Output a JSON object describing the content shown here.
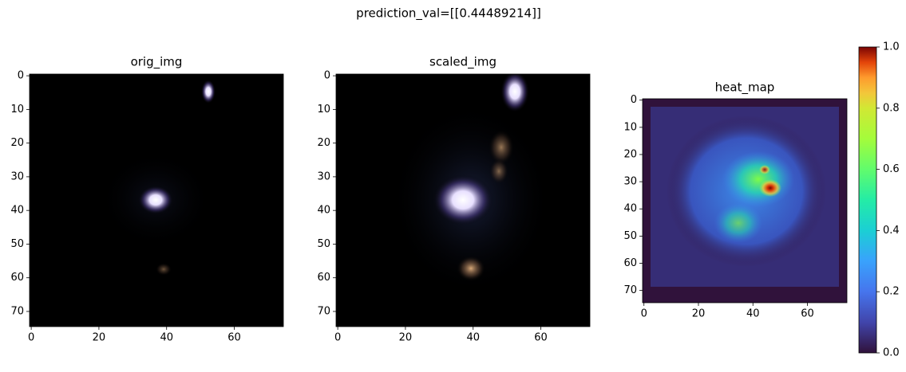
{
  "title": "prediction_val=[[0.44489214]]",
  "chart_data": [
    {
      "type": "image",
      "title": "orig_img",
      "xlim": [
        -0.5,
        74.5
      ],
      "ylim": [
        74.5,
        -0.5
      ],
      "xticks": [
        0,
        20,
        40,
        60
      ],
      "yticks": [
        0,
        10,
        20,
        30,
        40,
        50,
        60,
        70
      ]
    },
    {
      "type": "image",
      "title": "scaled_img",
      "xlim": [
        -0.5,
        74.5
      ],
      "ylim": [
        74.5,
        -0.5
      ],
      "xticks": [
        0,
        20,
        40,
        60
      ],
      "yticks": [
        0,
        10,
        20,
        30,
        40,
        50,
        60,
        70
      ]
    },
    {
      "type": "heatmap",
      "title": "heat_map",
      "xlim": [
        -0.5,
        74.5
      ],
      "ylim": [
        74.5,
        -0.5
      ],
      "xticks": [
        0,
        20,
        40,
        60
      ],
      "yticks": [
        0,
        10,
        20,
        30,
        40,
        50,
        60,
        70
      ],
      "colorbar": {
        "lim": [
          0,
          1
        ],
        "ticks": [
          {
            "value": 0,
            "label": "0.0"
          },
          0.2,
          0.4,
          0.6,
          0.8,
          {
            "value": 1,
            "label": "1.0"
          }
        ]
      }
    }
  ]
}
